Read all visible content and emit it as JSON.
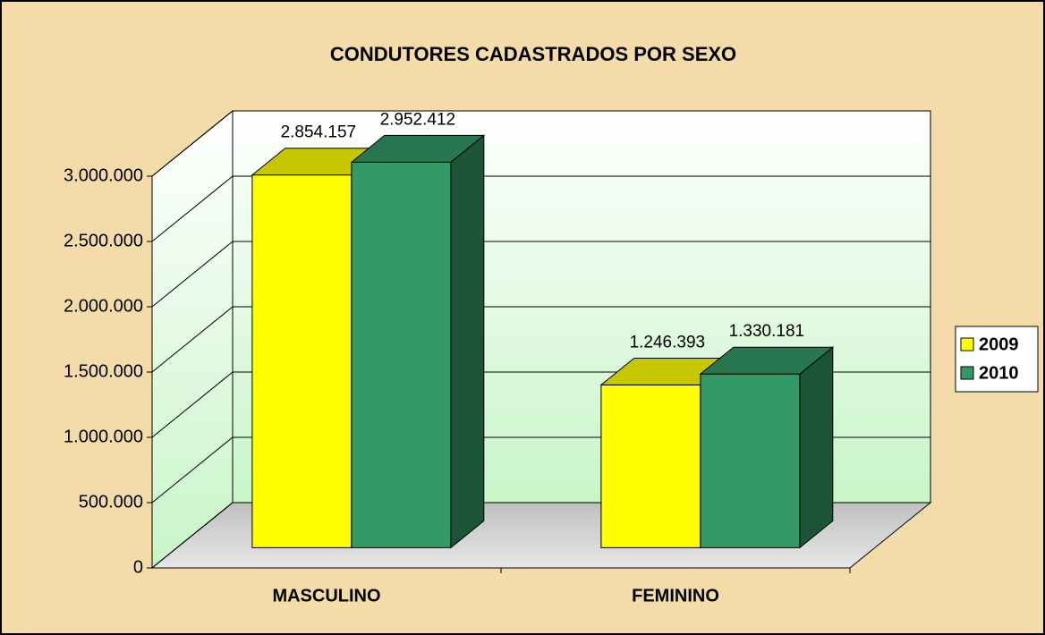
{
  "chart_data": {
    "type": "bar3d",
    "title": "CONDUTORES CADASTRADOS POR SEXO",
    "categories": [
      "MASCULINO",
      "FEMININO"
    ],
    "series": [
      {
        "name": "2009",
        "color": "#ffff00",
        "values": [
          2854157,
          1246393
        ],
        "value_labels": [
          "2.854.157",
          "1.246.393"
        ]
      },
      {
        "name": "2010",
        "color": "#339966",
        "values": [
          2952412,
          1330181
        ],
        "value_labels": [
          "2.952.412",
          "1.330.181"
        ]
      }
    ],
    "ylim": [
      0,
      3000000
    ],
    "yticks": [
      {
        "value": 0,
        "label": "0"
      },
      {
        "value": 500000,
        "label": "500.000"
      },
      {
        "value": 1000000,
        "label": "1.000.000"
      },
      {
        "value": 1500000,
        "label": "1.500.000"
      },
      {
        "value": 2000000,
        "label": "2.000.000"
      },
      {
        "value": 2500000,
        "label": "2.500.000"
      },
      {
        "value": 3000000,
        "label": "3.000.000"
      }
    ],
    "grid": true,
    "legend": "right"
  }
}
